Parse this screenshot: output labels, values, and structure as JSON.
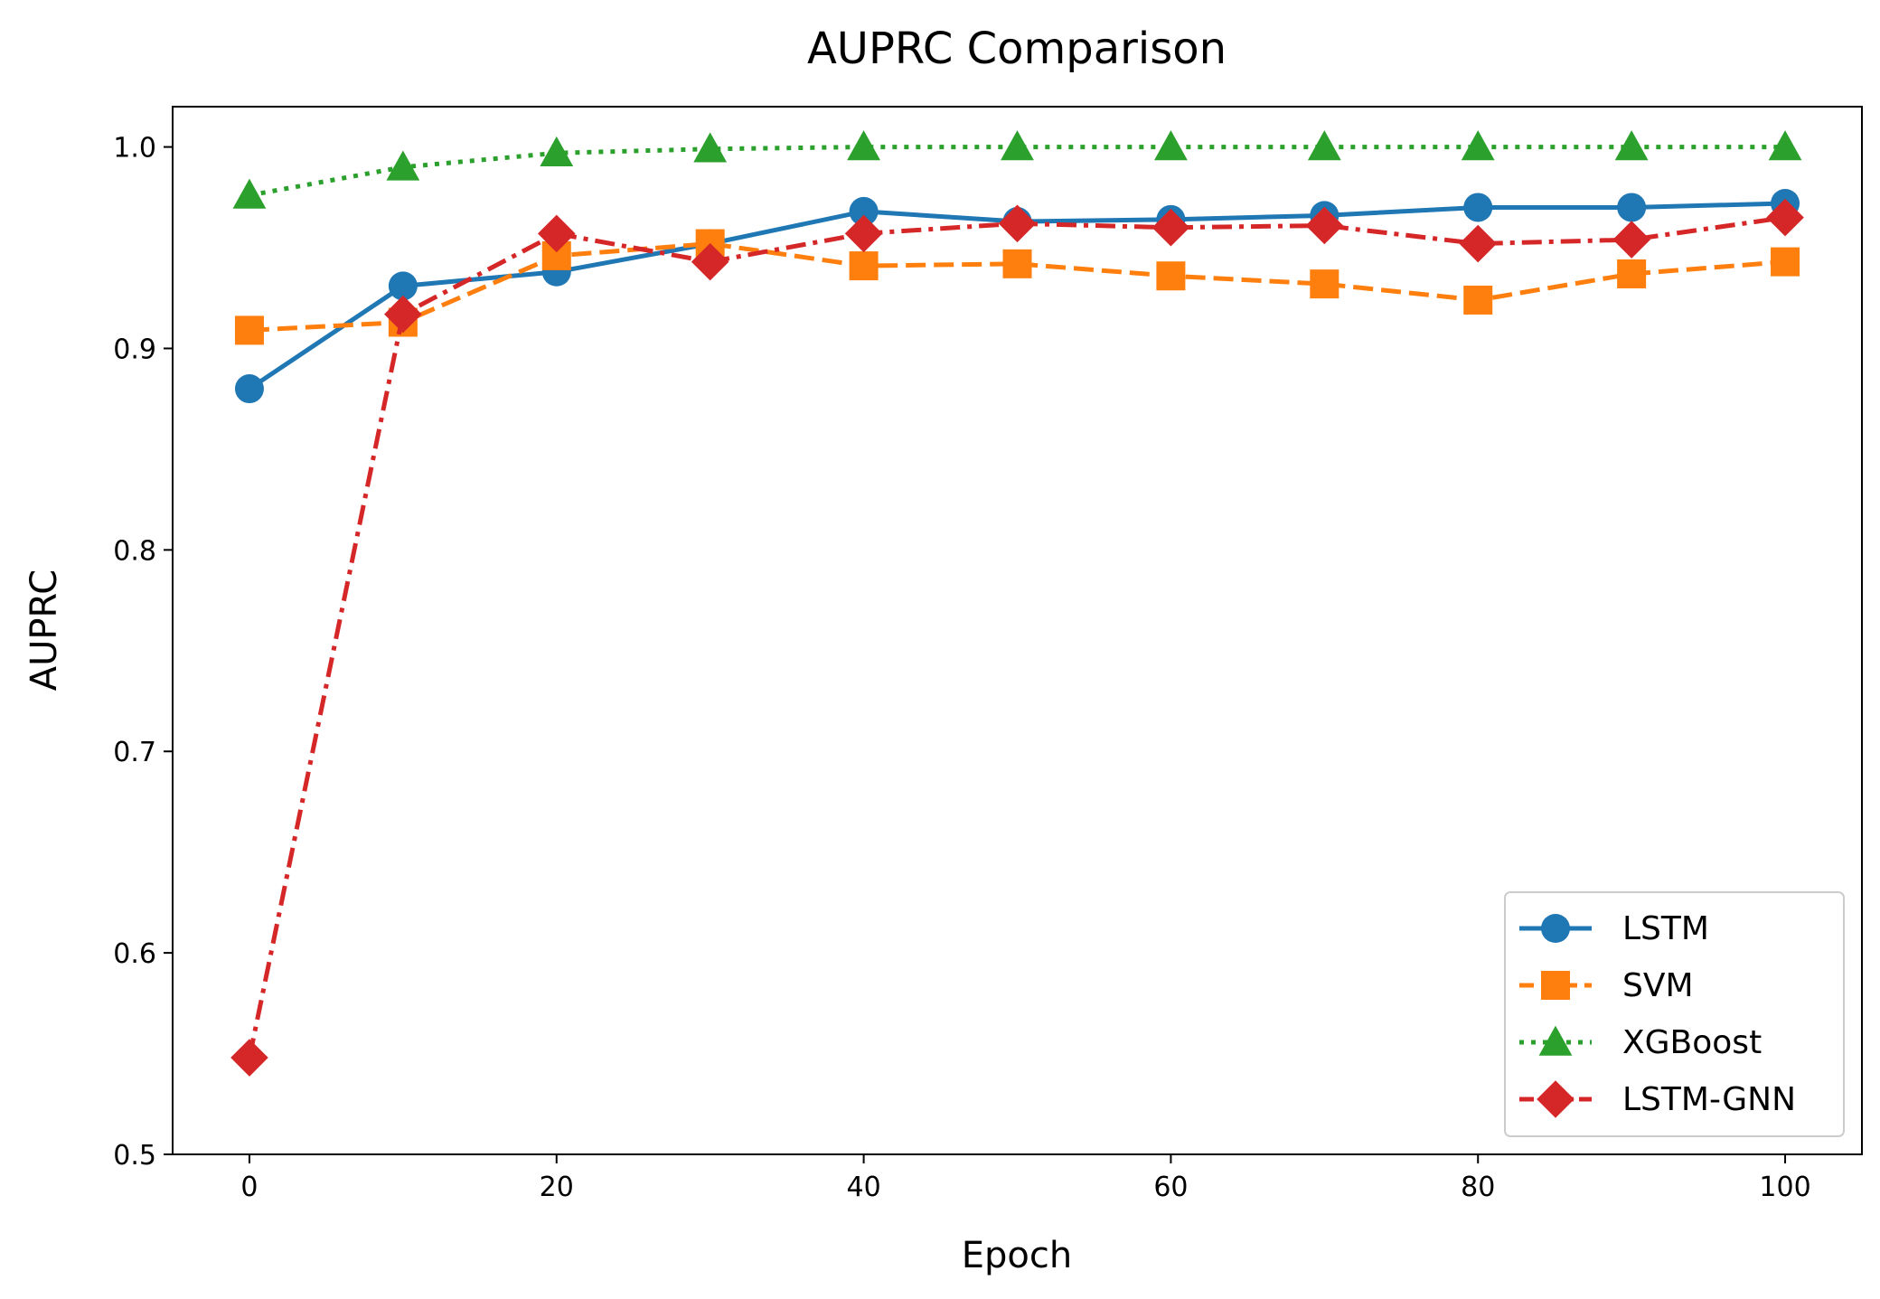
{
  "chart_data": {
    "type": "line",
    "title": "AUPRC Comparison",
    "xlabel": "Epoch",
    "ylabel": "AUPRC",
    "xlim": [
      -5,
      105
    ],
    "ylim": [
      0.5,
      1.02
    ],
    "xticks": [
      0,
      20,
      40,
      60,
      80,
      100
    ],
    "yticks": [
      0.5,
      0.6,
      0.7,
      0.8,
      0.9,
      1.0
    ],
    "xtick_labels": [
      "0",
      "20",
      "40",
      "60",
      "80",
      "100"
    ],
    "ytick_labels": [
      "0.5",
      "0.6",
      "0.7",
      "0.8",
      "0.9",
      "1.0"
    ],
    "grid": false,
    "legend_position": "bottom-right",
    "x": [
      0,
      10,
      20,
      30,
      40,
      50,
      60,
      70,
      80,
      90,
      100
    ],
    "series": [
      {
        "name": "LSTM",
        "color": "#1f77b4",
        "linestyle": "solid",
        "marker": "circle",
        "values": [
          0.88,
          0.931,
          0.938,
          0.952,
          0.968,
          0.963,
          0.964,
          0.966,
          0.97,
          0.97,
          0.972
        ]
      },
      {
        "name": "SVM",
        "color": "#ff7f0e",
        "linestyle": "dashed",
        "marker": "square",
        "values": [
          0.909,
          0.913,
          0.946,
          0.952,
          0.941,
          0.942,
          0.936,
          0.932,
          0.924,
          0.937,
          0.943
        ]
      },
      {
        "name": "XGBoost",
        "color": "#2ca02c",
        "linestyle": "dotted",
        "marker": "triangle",
        "values": [
          0.976,
          0.99,
          0.997,
          0.999,
          1.0,
          1.0,
          1.0,
          1.0,
          1.0,
          1.0,
          1.0
        ]
      },
      {
        "name": "LSTM-GNN",
        "color": "#d62728",
        "linestyle": "dashdot",
        "marker": "diamond",
        "values": [
          0.548,
          0.917,
          0.957,
          0.943,
          0.957,
          0.962,
          0.96,
          0.961,
          0.952,
          0.954,
          0.965
        ]
      }
    ]
  }
}
